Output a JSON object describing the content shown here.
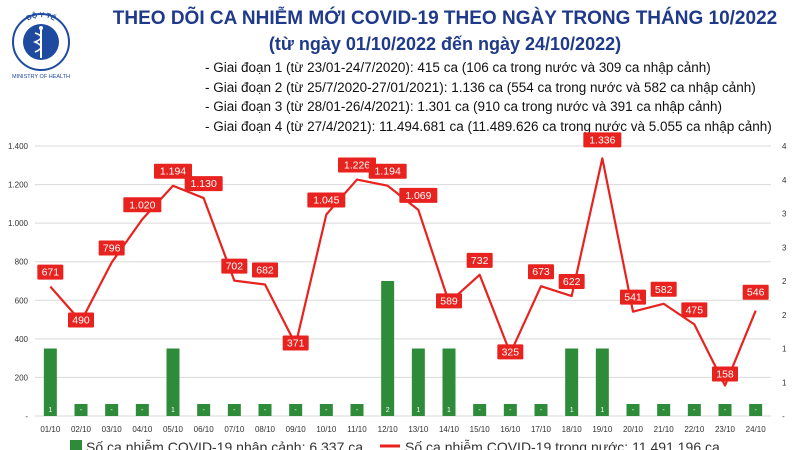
{
  "header": {
    "title": "THEO DÕI CA NHIỄM MỚI COVID-19 THEO NGÀY TRONG THÁNG 10/2022",
    "subtitle": "(từ ngày 01/10/2022 đến ngày 24/10/2022)",
    "logo_text": "BỘ Y TẾ",
    "logo_subtext": "MINISTRY OF HEALTH"
  },
  "notes": [
    "Giai đoạn 1 (từ 23/01-24/7/2020): 415 ca (106 ca trong nước và 309 ca nhập cảnh)",
    "Giai đoạn 2 (từ 25/7/2020-27/01/2021): 1.136 ca (554 ca trong nước và 582 ca nhập cảnh)",
    "Giai đoạn 3 (từ 28/01-26/4/2021): 1.301 ca (910 ca trong nước và 391 ca nhập cảnh)",
    "Giai đoạn 4 (từ 27/4/2021): 11.494.681 ca (11.489.626 ca trong nước và 5.055 ca nhập cảnh)"
  ],
  "colors": {
    "title": "#1f3a8a",
    "line": "#e8231f",
    "bar": "#2e8b3a",
    "grid": "#d9d9d9",
    "logo": "#1e4aa0"
  },
  "chart_data": {
    "type": "bar+line",
    "categories": [
      "01/10",
      "02/10",
      "03/10",
      "04/10",
      "05/10",
      "06/10",
      "07/10",
      "08/10",
      "09/10",
      "10/10",
      "11/10",
      "12/10",
      "13/10",
      "14/10",
      "15/10",
      "16/10",
      "17/10",
      "18/10",
      "19/10",
      "20/10",
      "21/10",
      "22/10",
      "23/10",
      "24/10"
    ],
    "series": [
      {
        "name": "Số ca nhiễm COVID-19 nhập cảnh: 6.337 ca",
        "type": "bar",
        "axis": "right",
        "values": [
          1,
          0,
          0,
          0,
          1,
          0,
          0,
          0,
          0,
          0,
          0,
          2,
          1,
          1,
          0,
          0,
          0,
          1,
          1,
          0,
          0,
          0,
          0,
          0
        ],
        "labels": [
          "1",
          "-",
          "-",
          "-",
          "1",
          "-",
          "-",
          "-",
          "-",
          "-",
          "-",
          "2",
          "1",
          "1",
          "-",
          "-",
          "-",
          "1",
          "1",
          "-",
          "-",
          "-",
          "-",
          "-"
        ]
      },
      {
        "name": "Số ca nhiễm COVID-19 trong nước: 11.491.196 ca",
        "type": "line",
        "axis": "left",
        "values": [
          671,
          490,
          796,
          1020,
          1194,
          1130,
          702,
          682,
          371,
          1045,
          1226,
          1194,
          1069,
          589,
          732,
          325,
          673,
          622,
          1336,
          541,
          582,
          475,
          158,
          546
        ],
        "labels": [
          "671",
          "490",
          "796",
          "1.020",
          "1.194",
          "1.130",
          "702",
          "682",
          "371",
          "1.045",
          "1.226",
          "1.194",
          "1.069",
          "589",
          "732",
          "325",
          "673",
          "622",
          "1.336",
          "541",
          "582",
          "475",
          "158",
          "546"
        ]
      }
    ],
    "y_left": {
      "range": [
        0,
        1400
      ],
      "ticks": [
        "-",
        "200",
        "400",
        "600",
        "800",
        "1.000",
        "1.200",
        "1.400"
      ]
    },
    "y_right": {
      "range": [
        0,
        4
      ],
      "ticks": [
        "-",
        "1",
        "1",
        "2",
        "2",
        "3",
        "3",
        "4",
        "4"
      ]
    },
    "legend_position": "bottom"
  }
}
